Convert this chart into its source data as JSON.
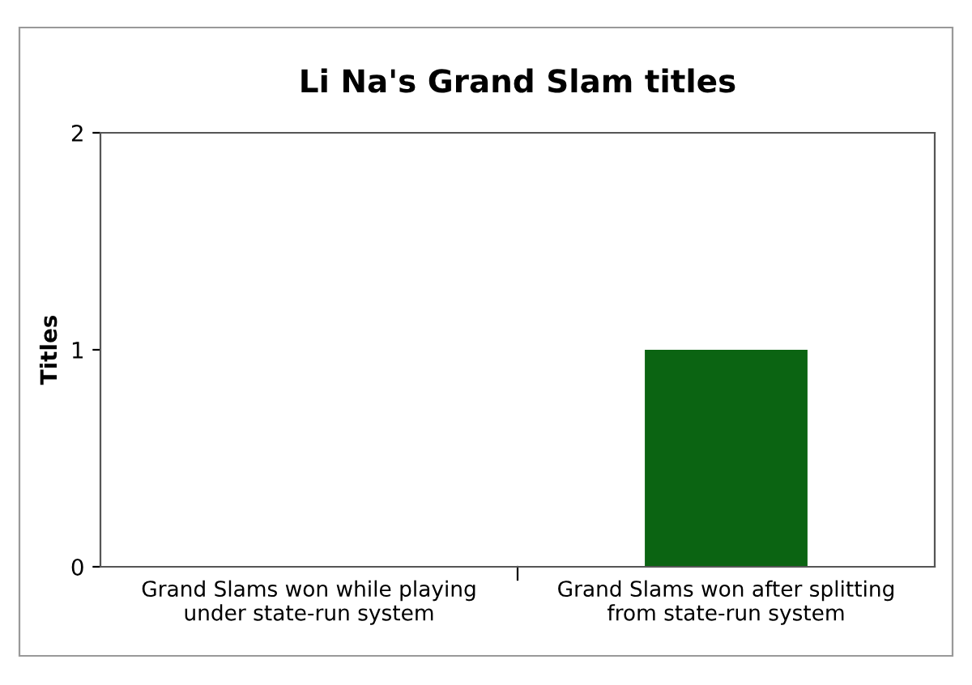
{
  "chart_data": {
    "type": "bar",
    "title": "Li Na's Grand Slam titles",
    "ylabel": "Titles",
    "categories": [
      "Grand Slams won while playing under state-run system",
      "Grand Slams won after splitting from state-run system"
    ],
    "values": [
      0,
      1
    ],
    "color": "#0b6412",
    "ylim": [
      0,
      2
    ],
    "yticks": [
      0,
      1,
      2
    ],
    "grid": false,
    "legend": false
  }
}
